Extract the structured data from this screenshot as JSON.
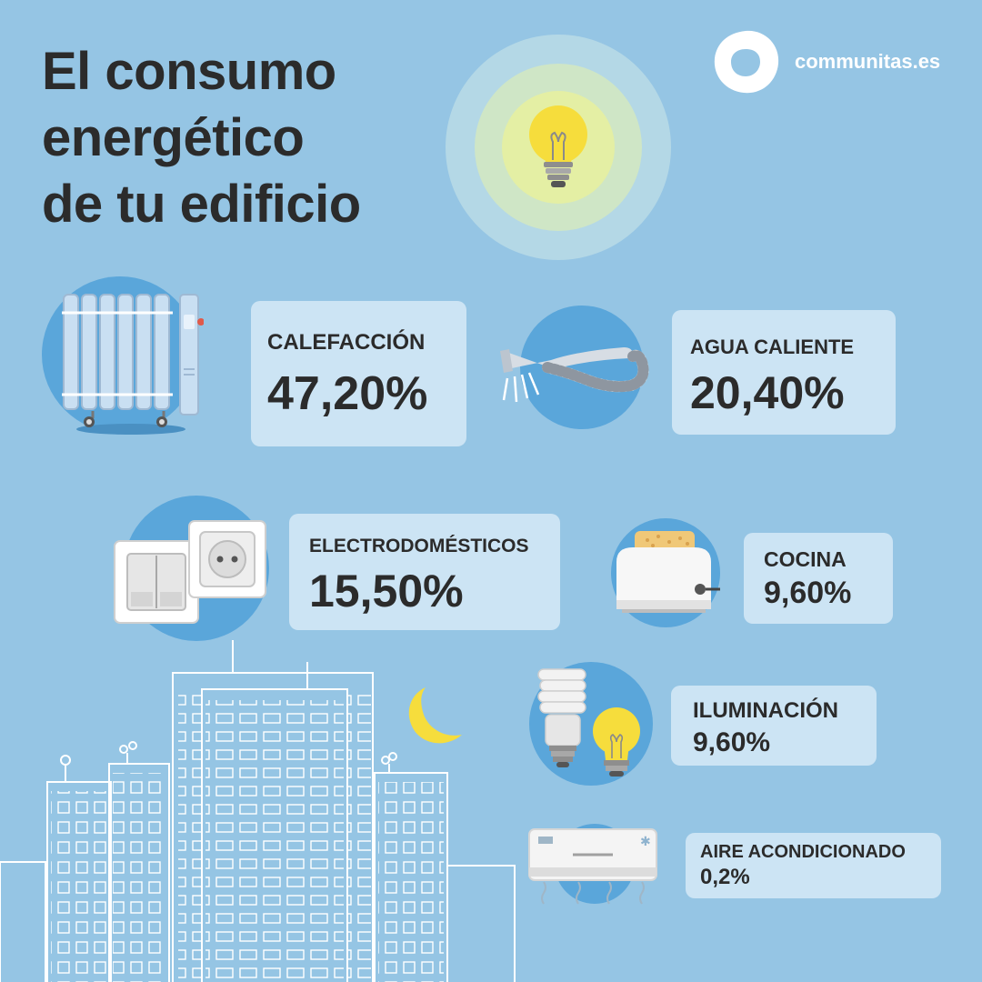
{
  "title": {
    "line1": "El consumo",
    "line2": "energético",
    "line3": "de tu edificio"
  },
  "brand": {
    "name": "communitas.es",
    "logo_icon": "ring-logo-icon"
  },
  "colors": {
    "background": "#95c5e4",
    "circle": "#5aa6da",
    "card": "#e2f0fa",
    "text": "#2b2b2b",
    "bulb": "#f6dd3c",
    "moon": "#f6dd3c"
  },
  "items": [
    {
      "label": "CALEFACCIÓN",
      "value": "47,20%",
      "icon": "radiator-icon"
    },
    {
      "label": "AGUA CALIENTE",
      "value": "20,40%",
      "icon": "shower-head-icon"
    },
    {
      "label": "ELECTRODOMÉSTICOS",
      "value": "15,50%",
      "icon": "power-socket-icon"
    },
    {
      "label": "COCINA",
      "value": "9,60%",
      "icon": "toaster-icon"
    },
    {
      "label": "ILUMINACIÓN",
      "value": "9,60%",
      "icon": "light-bulbs-icon"
    },
    {
      "label": "AIRE ACONDICIONADO",
      "value": "0,2%",
      "icon": "air-conditioner-icon"
    }
  ]
}
